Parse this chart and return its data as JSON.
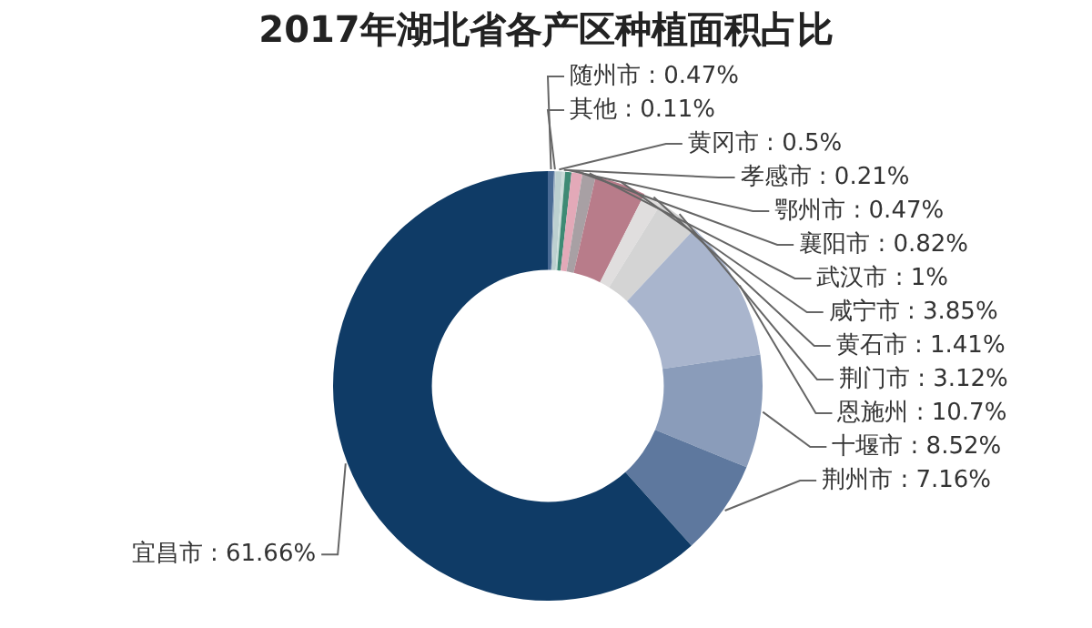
{
  "chart_data": {
    "type": "donut",
    "title": "2017年湖北省各产区种植面积占比",
    "categories": [
      "随州市",
      "其他",
      "黄冈市",
      "孝感市",
      "鄂州市",
      "襄阳市",
      "武汉市",
      "咸宁市",
      "黄石市",
      "荆门市",
      "恩施州",
      "十堰市",
      "荆州市",
      "宜昌市"
    ],
    "values": [
      0.47,
      0.11,
      0.5,
      0.21,
      0.47,
      0.82,
      1,
      3.85,
      1.41,
      3.12,
      10.7,
      8.52,
      7.16,
      61.66
    ],
    "value_labels": [
      "0.47%",
      "0.11%",
      "0.5%",
      "0.21%",
      "0.47%",
      "0.82%",
      "1%",
      "3.85%",
      "1.41%",
      "3.12%",
      "10.7%",
      "8.52%",
      "7.16%",
      "61.66%"
    ],
    "colors": [
      "#4a6b95",
      "#a0b4c4",
      "#bcd0d0",
      "#c8dcd8",
      "#3e8a74",
      "#e3a9b8",
      "#a8a0a4",
      "#b87c8a",
      "#e0dede",
      "#d4d4d4",
      "#a9b5cd",
      "#8a9cba",
      "#5e789e",
      "#0f3b66"
    ],
    "legend": false
  }
}
